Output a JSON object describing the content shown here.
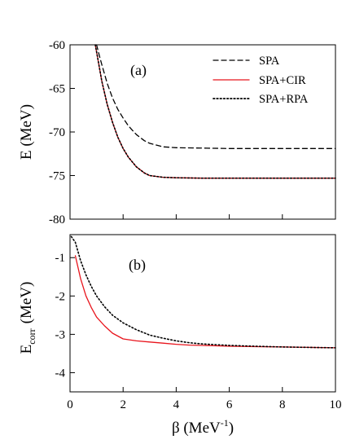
{
  "colors": {
    "axes": "#000000",
    "spa": "#000000",
    "spa_cir": "#e8141c",
    "spa_rpa": "#000000"
  },
  "chart_data": [
    {
      "type": "line",
      "panel_label": "(a)",
      "xlim": [
        0,
        10
      ],
      "ylim": [
        -80,
        -60
      ],
      "x_ticks": [
        0,
        2,
        4,
        6,
        8,
        10
      ],
      "y_ticks": [
        -80,
        -75,
        -70,
        -65,
        -60
      ],
      "y_tick_labels": [
        "-80",
        "-75",
        "-70",
        "-65",
        "-60"
      ],
      "ylabel": "E  (MeV)",
      "xlabel": "",
      "grid": false,
      "legend": {
        "position": "top-right",
        "entries": [
          "SPA",
          "SPA+CIR",
          "SPA+RPA"
        ]
      },
      "series": [
        {
          "name": "SPA",
          "style": "dashed",
          "color": "#000000",
          "x": [
            1.0,
            1.1,
            1.2,
            1.4,
            1.6,
            1.8,
            2.0,
            2.2,
            2.5,
            2.8,
            3.0,
            3.5,
            4.0,
            5.0,
            6.0,
            7.0,
            8.0,
            9.0,
            10.0
          ],
          "y": [
            -60.0,
            -61.2,
            -62.3,
            -64.4,
            -66.1,
            -67.4,
            -68.4,
            -69.3,
            -70.3,
            -71.0,
            -71.3,
            -71.7,
            -71.8,
            -71.85,
            -71.9,
            -71.9,
            -71.9,
            -71.9,
            -71.9
          ]
        },
        {
          "name": "SPA+CIR",
          "style": "solid",
          "color": "#e8141c",
          "x": [
            0.95,
            1.0,
            1.2,
            1.4,
            1.6,
            1.8,
            2.0,
            2.2,
            2.5,
            2.8,
            3.0,
            3.5,
            4.0,
            5.0,
            6.0,
            7.0,
            8.0,
            9.0,
            10.0
          ],
          "y": [
            -60.0,
            -60.8,
            -64.2,
            -66.8,
            -68.9,
            -70.6,
            -71.9,
            -72.9,
            -74.0,
            -74.7,
            -75.0,
            -75.2,
            -75.25,
            -75.3,
            -75.3,
            -75.3,
            -75.3,
            -75.3,
            -75.3
          ]
        },
        {
          "name": "SPA+RPA",
          "style": "dotted",
          "color": "#000000",
          "x": [
            0.95,
            1.0,
            1.2,
            1.4,
            1.6,
            1.8,
            2.0,
            2.2,
            2.5,
            2.8,
            3.0,
            3.5,
            4.0,
            5.0,
            6.0,
            7.0,
            8.0,
            9.0,
            10.0
          ],
          "y": [
            -60.0,
            -60.8,
            -64.2,
            -66.8,
            -68.9,
            -70.6,
            -71.9,
            -72.9,
            -74.0,
            -74.7,
            -75.0,
            -75.2,
            -75.25,
            -75.3,
            -75.3,
            -75.3,
            -75.3,
            -75.3,
            -75.3
          ]
        }
      ]
    },
    {
      "type": "line",
      "panel_label": "(b)",
      "xlim": [
        0,
        10
      ],
      "ylim": [
        -4.5,
        -0.4
      ],
      "x_ticks": [
        0,
        2,
        4,
        6,
        8,
        10
      ],
      "x_tick_labels": [
        "0",
        "2",
        "4",
        "6",
        "8",
        "10"
      ],
      "y_ticks": [
        -4,
        -3,
        -2,
        -1
      ],
      "y_tick_labels": [
        "-4",
        "-3",
        "-2",
        "-1"
      ],
      "ylabel_main": "E",
      "ylabel_sub": "corr",
      "ylabel_unit": "(MeV)",
      "xlabel_main": "β  (MeV",
      "xlabel_sup": "-1",
      "xlabel_end": ")",
      "grid": false,
      "series": [
        {
          "name": "SPA+CIR",
          "style": "solid",
          "color": "#e8141c",
          "x": [
            0.2,
            0.4,
            0.6,
            0.8,
            1.0,
            1.3,
            1.6,
            2.0,
            2.5,
            3.0,
            3.5,
            4.0,
            4.5,
            5.0,
            6.0,
            7.0,
            8.0,
            9.0,
            10.0
          ],
          "y": [
            -0.95,
            -1.55,
            -2.0,
            -2.3,
            -2.55,
            -2.78,
            -2.97,
            -3.12,
            -3.17,
            -3.2,
            -3.23,
            -3.26,
            -3.28,
            -3.29,
            -3.31,
            -3.32,
            -3.33,
            -3.34,
            -3.35
          ]
        },
        {
          "name": "SPA+RPA",
          "style": "dotted",
          "color": "#000000",
          "x": [
            0.05,
            0.2,
            0.4,
            0.6,
            0.8,
            1.0,
            1.3,
            1.6,
            2.0,
            2.5,
            3.0,
            3.5,
            4.0,
            4.5,
            5.0,
            6.0,
            7.0,
            8.0,
            9.0,
            10.0
          ],
          "y": [
            -0.45,
            -0.6,
            -1.08,
            -1.45,
            -1.75,
            -2.0,
            -2.28,
            -2.5,
            -2.7,
            -2.88,
            -3.02,
            -3.1,
            -3.17,
            -3.22,
            -3.25,
            -3.29,
            -3.31,
            -3.33,
            -3.34,
            -3.35
          ]
        }
      ]
    }
  ]
}
